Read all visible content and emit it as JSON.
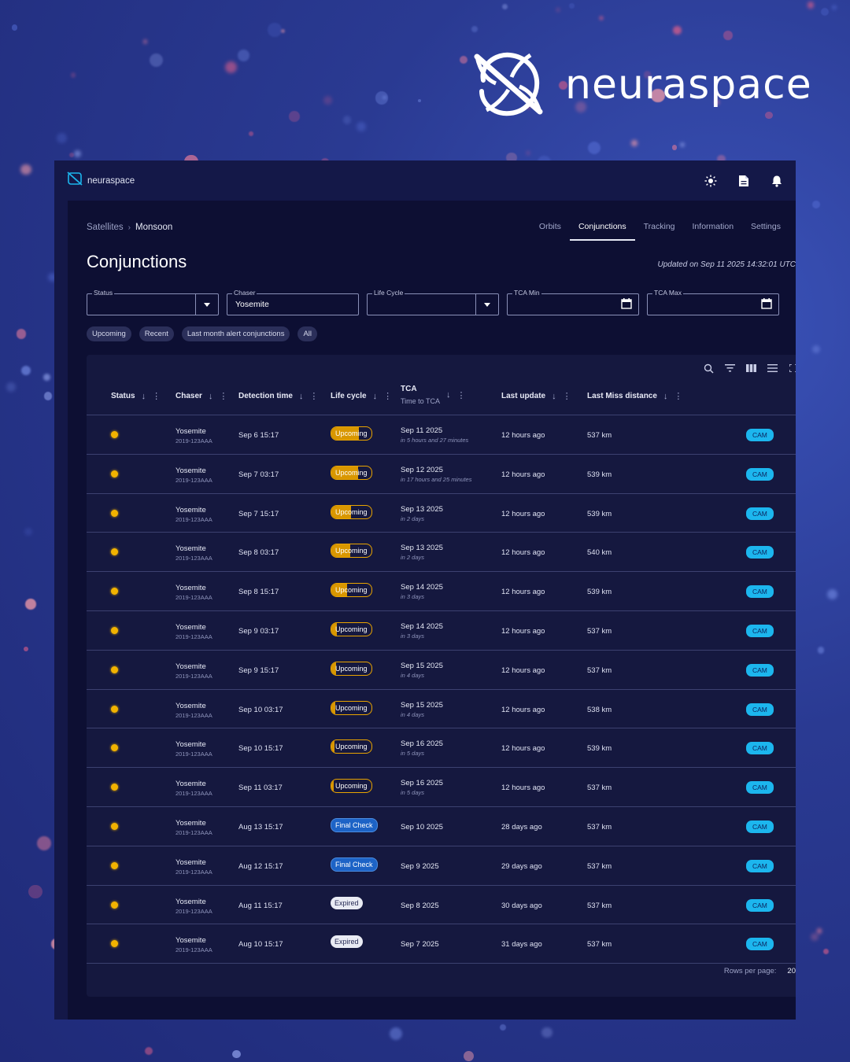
{
  "brand": {
    "name": "neuraspace"
  },
  "app": {
    "logo_text": "neuraspace",
    "header_icons": [
      "sun-icon",
      "document-icon",
      "bell-icon"
    ]
  },
  "breadcrumb": {
    "parent": "Satellites",
    "current": "Monsoon"
  },
  "tabs": [
    {
      "label": "Orbits",
      "active": false
    },
    {
      "label": "Conjunctions",
      "active": true
    },
    {
      "label": "Tracking",
      "active": false
    },
    {
      "label": "Information",
      "active": false
    },
    {
      "label": "Settings",
      "active": false
    }
  ],
  "page": {
    "title": "Conjunctions",
    "updated": "Updated on Sep 11 2025 14:32:01 UTC"
  },
  "filters": {
    "status": {
      "label": "Status",
      "value": ""
    },
    "chaser": {
      "label": "Chaser",
      "value": "Yosemite"
    },
    "life_cycle": {
      "label": "Life Cycle",
      "value": ""
    },
    "tca_min": {
      "label": "TCA Min",
      "value": ""
    },
    "tca_max": {
      "label": "TCA Max",
      "value": ""
    }
  },
  "chips": [
    "Upcoming",
    "Recent",
    "Last month alert conjunctions",
    "All"
  ],
  "table": {
    "columns": {
      "status": "Status",
      "chaser": "Chaser",
      "detection_time": "Detection time",
      "life_cycle": "Life cycle",
      "tca": "TCA",
      "tca_sub": "Time to TCA",
      "last_update": "Last update",
      "last_miss": "Last Miss distance"
    },
    "rows": [
      {
        "chaser": "Yosemite",
        "id": "2019-123AAA",
        "det": "Sep 6 15:17",
        "lc": "Upcoming",
        "lc_type": "upcoming",
        "progress": 0.7,
        "tca": "Sep 11 2025",
        "tca_rel": "in 5 hours and 27 minutes",
        "lu": "12 hours ago",
        "lmd": "537 km",
        "action": "CAM"
      },
      {
        "chaser": "Yosemite",
        "id": "2019-123AAA",
        "det": "Sep 7 03:17",
        "lc": "Upcoming",
        "lc_type": "upcoming",
        "progress": 0.68,
        "tca": "Sep 12 2025",
        "tca_rel": "in 17 hours and 25 minutes",
        "lu": "12 hours ago",
        "lmd": "539 km",
        "action": "CAM"
      },
      {
        "chaser": "Yosemite",
        "id": "2019-123AAA",
        "det": "Sep 7 15:17",
        "lc": "Upcoming",
        "lc_type": "upcoming",
        "progress": 0.5,
        "tca": "Sep 13 2025",
        "tca_rel": "in 2 days",
        "lu": "12 hours ago",
        "lmd": "539 km",
        "action": "CAM"
      },
      {
        "chaser": "Yosemite",
        "id": "2019-123AAA",
        "det": "Sep 8 03:17",
        "lc": "Upcoming",
        "lc_type": "upcoming",
        "progress": 0.48,
        "tca": "Sep 13 2025",
        "tca_rel": "in 2 days",
        "lu": "12 hours ago",
        "lmd": "540 km",
        "action": "CAM"
      },
      {
        "chaser": "Yosemite",
        "id": "2019-123AAA",
        "det": "Sep 8 15:17",
        "lc": "Upcoming",
        "lc_type": "upcoming",
        "progress": 0.4,
        "tca": "Sep 14 2025",
        "tca_rel": "in 3 days",
        "lu": "12 hours ago",
        "lmd": "539 km",
        "action": "CAM"
      },
      {
        "chaser": "Yosemite",
        "id": "2019-123AAA",
        "det": "Sep 9 03:17",
        "lc": "Upcoming",
        "lc_type": "upcoming",
        "progress": 0.14,
        "tca": "Sep 14 2025",
        "tca_rel": "in 3 days",
        "lu": "12 hours ago",
        "lmd": "537 km",
        "action": "CAM"
      },
      {
        "chaser": "Yosemite",
        "id": "2019-123AAA",
        "det": "Sep 9 15:17",
        "lc": "Upcoming",
        "lc_type": "upcoming",
        "progress": 0.12,
        "tca": "Sep 15 2025",
        "tca_rel": "in 4 days",
        "lu": "12 hours ago",
        "lmd": "537 km",
        "action": "CAM"
      },
      {
        "chaser": "Yosemite",
        "id": "2019-123AAA",
        "det": "Sep 10 03:17",
        "lc": "Upcoming",
        "lc_type": "upcoming",
        "progress": 0.1,
        "tca": "Sep 15 2025",
        "tca_rel": "in 4 days",
        "lu": "12 hours ago",
        "lmd": "538 km",
        "action": "CAM"
      },
      {
        "chaser": "Yosemite",
        "id": "2019-123AAA",
        "det": "Sep 10 15:17",
        "lc": "Upcoming",
        "lc_type": "upcoming",
        "progress": 0.08,
        "tca": "Sep 16 2025",
        "tca_rel": "in 5 days",
        "lu": "12 hours ago",
        "lmd": "539 km",
        "action": "CAM"
      },
      {
        "chaser": "Yosemite",
        "id": "2019-123AAA",
        "det": "Sep 11 03:17",
        "lc": "Upcoming",
        "lc_type": "upcoming",
        "progress": 0.06,
        "tca": "Sep 16 2025",
        "tca_rel": "in 5 days",
        "lu": "12 hours ago",
        "lmd": "537 km",
        "action": "CAM"
      },
      {
        "chaser": "Yosemite",
        "id": "2019-123AAA",
        "det": "Aug 13 15:17",
        "lc": "Final Check",
        "lc_type": "final",
        "progress": 0,
        "tca": "Sep 10 2025",
        "tca_rel": "",
        "lu": "28 days ago",
        "lmd": "537 km",
        "action": "CAM"
      },
      {
        "chaser": "Yosemite",
        "id": "2019-123AAA",
        "det": "Aug 12 15:17",
        "lc": "Final Check",
        "lc_type": "final",
        "progress": 0,
        "tca": "Sep 9 2025",
        "tca_rel": "",
        "lu": "29 days ago",
        "lmd": "537 km",
        "action": "CAM"
      },
      {
        "chaser": "Yosemite",
        "id": "2019-123AAA",
        "det": "Aug 11 15:17",
        "lc": "Expired",
        "lc_type": "expired",
        "progress": 0,
        "tca": "Sep 8 2025",
        "tca_rel": "",
        "lu": "30 days ago",
        "lmd": "537 km",
        "action": "CAM"
      },
      {
        "chaser": "Yosemite",
        "id": "2019-123AAA",
        "det": "Aug 10 15:17",
        "lc": "Expired",
        "lc_type": "expired",
        "progress": 0,
        "tca": "Sep 7 2025",
        "tca_rel": "",
        "lu": "31 days ago",
        "lmd": "537 km",
        "action": "CAM"
      }
    ]
  },
  "footer": {
    "rows_per_page_label": "Rows per page:",
    "rows_per_page": "20"
  },
  "colors": {
    "accent_cyan": "#1cb6ee",
    "upcoming": "#e9a400",
    "status_dot": "#f2b300",
    "final_check": "#1d63c6"
  }
}
